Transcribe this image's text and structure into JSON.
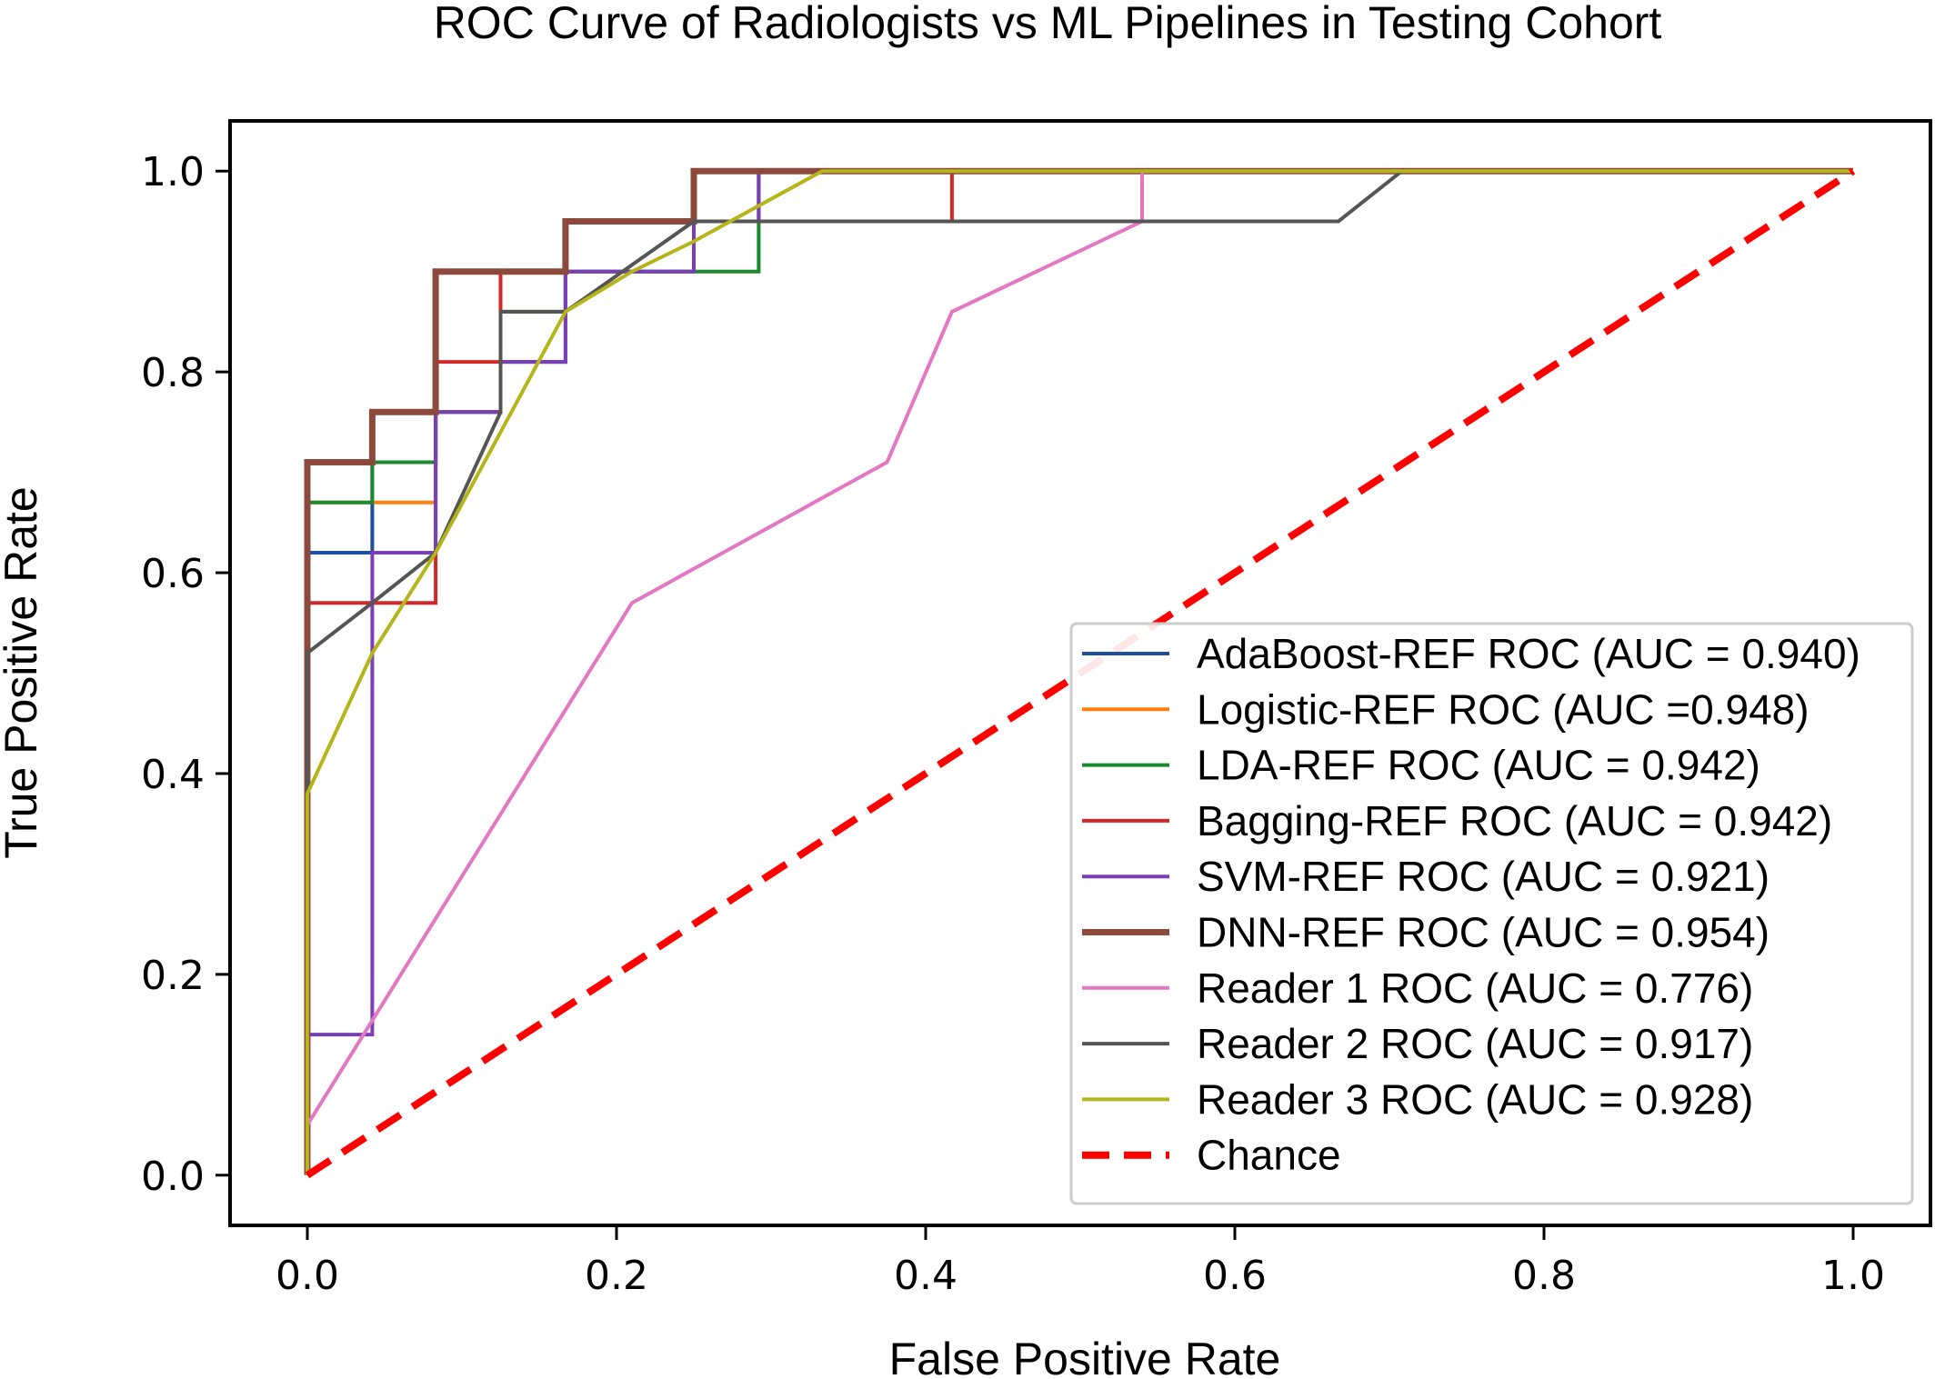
{
  "chart_data": {
    "type": "line",
    "title": "ROC Curve of Radiologists vs ML Pipelines in Testing Cohort",
    "xlabel": "False Positive Rate",
    "ylabel": "True Positive Rate",
    "xlim": [
      -0.05,
      1.05
    ],
    "ylim": [
      -0.05,
      1.05
    ],
    "xticks": [
      0.0,
      0.2,
      0.4,
      0.6,
      0.8,
      1.0
    ],
    "yticks": [
      0.0,
      0.2,
      0.4,
      0.6,
      0.8,
      1.0
    ],
    "xtick_labels": [
      "0.0",
      "0.2",
      "0.4",
      "0.6",
      "0.8",
      "1.0"
    ],
    "ytick_labels": [
      "0.0",
      "0.2",
      "0.4",
      "0.6",
      "0.8",
      "1.0"
    ],
    "grid": false,
    "legend_position": "lower-right",
    "series": [
      {
        "name": "AdaBoost-REF ROC (AUC = 0.940)",
        "color": "#1f4e9c",
        "x": [
          0,
          0,
          0,
          0.042,
          0.042,
          0.083,
          0.083,
          0.125,
          0.125,
          0.167,
          0.167,
          0.25,
          0.25,
          0.292,
          0.292,
          1
        ],
        "y": [
          0,
          0.53,
          0.62,
          0.62,
          0.71,
          0.71,
          0.76,
          0.76,
          0.81,
          0.81,
          0.9,
          0.9,
          0.95,
          0.95,
          1,
          1
        ]
      },
      {
        "name": "Logistic-REF ROC (AUC =0.948)",
        "color": "#ff7f0e",
        "x": [
          0,
          0,
          0.042,
          0.042,
          0.083,
          0.083,
          0.125,
          0.125,
          0.167,
          0.167,
          0.25,
          0.25,
          1
        ],
        "y": [
          0,
          0.67,
          0.67,
          0.67,
          0.67,
          0.76,
          0.76,
          0.9,
          0.9,
          0.95,
          0.95,
          1,
          1
        ]
      },
      {
        "name": "LDA-REF ROC (AUC = 0.942)",
        "color": "#1a8a2e",
        "x": [
          0,
          0,
          0.042,
          0.042,
          0.083,
          0.083,
          0.125,
          0.125,
          0.167,
          0.167,
          0.25,
          0.25,
          0.292,
          0.292,
          1
        ],
        "y": [
          0,
          0.67,
          0.67,
          0.71,
          0.71,
          0.76,
          0.76,
          0.86,
          0.86,
          0.9,
          0.9,
          0.9,
          0.9,
          1,
          1
        ]
      },
      {
        "name": "Bagging-REF ROC (AUC = 0.942)",
        "color": "#d62728",
        "x": [
          0,
          0,
          0.042,
          0.042,
          0.083,
          0.083,
          0.125,
          0.125,
          0.167,
          0.167,
          0.25,
          0.25,
          0.417,
          0.417,
          1
        ],
        "y": [
          0,
          0.57,
          0.57,
          0.57,
          0.57,
          0.81,
          0.81,
          0.9,
          0.9,
          0.95,
          0.95,
          0.95,
          0.95,
          1,
          1
        ]
      },
      {
        "name": "SVM-REF ROC (AUC = 0.921)",
        "color": "#7b3fb5",
        "x": [
          0,
          0,
          0.042,
          0.042,
          0.083,
          0.083,
          0.125,
          0.125,
          0.167,
          0.167,
          0.25,
          0.25,
          0.292,
          0.292,
          1
        ],
        "y": [
          0,
          0.14,
          0.14,
          0.62,
          0.62,
          0.76,
          0.76,
          0.81,
          0.81,
          0.9,
          0.9,
          0.95,
          0.95,
          1,
          1
        ]
      },
      {
        "name": "DNN-REF ROC (AUC = 0.954)",
        "color": "#8b4a3c",
        "x": [
          0,
          0,
          0.042,
          0.042,
          0.083,
          0.083,
          0.167,
          0.167,
          0.25,
          0.25,
          1
        ],
        "y": [
          0,
          0.71,
          0.71,
          0.76,
          0.76,
          0.9,
          0.9,
          0.95,
          0.95,
          1,
          1
        ]
      },
      {
        "name": "Reader 1 ROC (AUC = 0.776)",
        "color": "#e377c2",
        "x": [
          0,
          0.21,
          0.375,
          0.417,
          0.54,
          0.54,
          1
        ],
        "y": [
          0.05,
          0.57,
          0.71,
          0.86,
          0.95,
          1,
          1
        ]
      },
      {
        "name": "Reader 2 ROC (AUC = 0.917)",
        "color": "#555555",
        "x": [
          0,
          0,
          0,
          0.042,
          0.083,
          0.125,
          0.125,
          0.167,
          0.25,
          0.667,
          0.708,
          1
        ],
        "y": [
          0,
          0.38,
          0.52,
          0.57,
          0.62,
          0.76,
          0.86,
          0.86,
          0.95,
          0.95,
          1,
          1
        ]
      },
      {
        "name": "Reader 3 ROC (AUC = 0.928)",
        "color": "#b5b51a",
        "x": [
          0,
          0,
          0.042,
          0.083,
          0.125,
          0.167,
          0.21,
          0.25,
          0.333,
          1
        ],
        "y": [
          0,
          0.38,
          0.52,
          0.62,
          0.74,
          0.86,
          0.9,
          0.93,
          1,
          1
        ]
      },
      {
        "name": "Chance",
        "color": "#ff0000",
        "dashed": true,
        "x": [
          0,
          1
        ],
        "y": [
          0,
          1
        ]
      }
    ]
  }
}
